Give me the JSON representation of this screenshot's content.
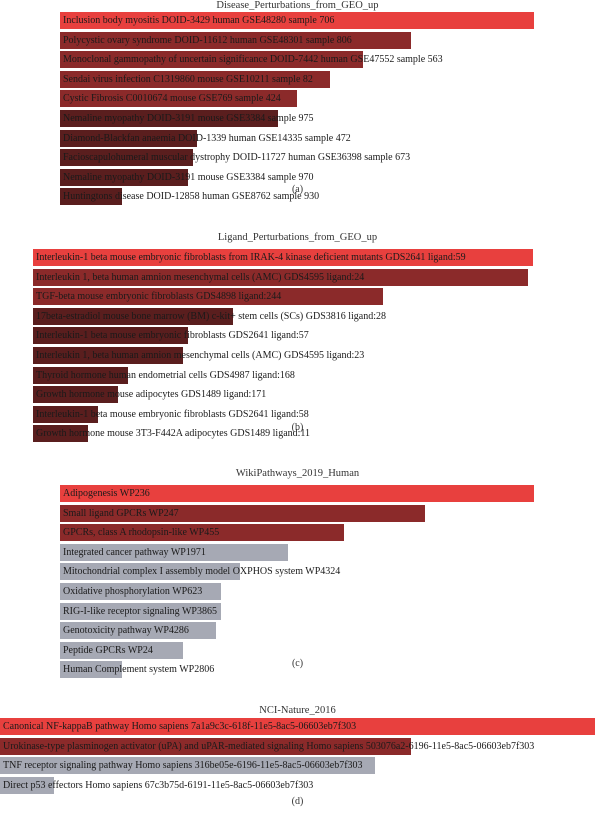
{
  "colors": {
    "red": "#e8403e",
    "darkred": "#8b2a2a",
    "maroon": "#5a1e1e",
    "gray": "#a6a9b4"
  },
  "chart_data": [
    {
      "type": "bar",
      "title": "Disease_Perturbations_from_GEO_up",
      "panel_label": "(a)",
      "bars": [
        {
          "label": "Inclusion body myositis DOID-3429 human GSE48280 sample 706",
          "value": 1.0,
          "color": "red"
        },
        {
          "label": "Polycystic ovary syndrome DOID-11612 human GSE48301 sample 806",
          "value": 0.74,
          "color": "darkred"
        },
        {
          "label": "Monoclonal gammopathy of uncertain significance DOID-7442 human GSE47552 sample 563",
          "value": 0.64,
          "color": "darkred"
        },
        {
          "label": "Sendai virus infection C1319860 mouse GSE10211 sample 82",
          "value": 0.57,
          "color": "darkred"
        },
        {
          "label": "Cystic Fibrosis C0010674 mouse GSE769 sample 424",
          "value": 0.5,
          "color": "darkred"
        },
        {
          "label": "Nemaline myopathy DOID-3191 mouse GSE3384 sample 975",
          "value": 0.46,
          "color": "maroon"
        },
        {
          "label": "Diamond-Blackfan anaemia DOID-1339 human GSE14335 sample 472",
          "value": 0.29,
          "color": "maroon"
        },
        {
          "label": "Facioscapulohumeral muscular dystrophy DOID-11727 human GSE36398 sample 673",
          "value": 0.28,
          "color": "maroon"
        },
        {
          "label": "Nemaline myopathy DOID-3191 mouse GSE3384 sample 970",
          "value": 0.27,
          "color": "maroon"
        },
        {
          "label": "Huntingtons disease DOID-12858 human GSE8762 sample 930",
          "value": 0.13,
          "color": "maroon"
        }
      ]
    },
    {
      "type": "bar",
      "title": "Ligand_Perturbations_from_GEO_up",
      "panel_label": "(b)",
      "bars": [
        {
          "label": "Interleukin-1 beta mouse embryonic fibroblasts from IRAK-4 kinase deficient mutants GDS2641 ligand:59",
          "value": 1.0,
          "color": "red"
        },
        {
          "label": "Interleukin 1, beta human amnion mesenchymal cells (AMC) GDS4595 ligand:24",
          "value": 0.99,
          "color": "darkred"
        },
        {
          "label": "TGF-beta mouse embryonic fibroblasts GDS4898 ligand:244",
          "value": 0.7,
          "color": "darkred"
        },
        {
          "label": "17beta-estradiol mouse bone marrow (BM) c-kit+ stem cells (SCs) GDS3816 ligand:28",
          "value": 0.4,
          "color": "maroon"
        },
        {
          "label": "Interleukin-1 beta mouse embryonic fibroblasts GDS2641 ligand:57",
          "value": 0.31,
          "color": "maroon"
        },
        {
          "label": "Interleukin 1, beta human amnion mesenchymal cells (AMC) GDS4595 ligand:23",
          "value": 0.3,
          "color": "maroon"
        },
        {
          "label": "Thyroid hormone human endometrial cells GDS4987 ligand:168",
          "value": 0.19,
          "color": "maroon"
        },
        {
          "label": "Growth hormone mouse adipocytes GDS1489 ligand:171",
          "value": 0.17,
          "color": "maroon"
        },
        {
          "label": "Interleukin-1 beta mouse embryonic fibroblasts GDS2641 ligand:58",
          "value": 0.13,
          "color": "maroon"
        },
        {
          "label": "Growth hormone mouse 3T3-F442A adipocytes GDS1489 ligand:11",
          "value": 0.11,
          "color": "maroon"
        }
      ]
    },
    {
      "type": "bar",
      "title": "WikiPathways_2019_Human",
      "panel_label": "(c)",
      "bars": [
        {
          "label": "Adipogenesis WP236",
          "value": 1.0,
          "color": "red"
        },
        {
          "label": "Small ligand GPCRs WP247",
          "value": 0.77,
          "color": "darkred"
        },
        {
          "label": "GPCRs, class A rhodopsin-like WP455",
          "value": 0.6,
          "color": "darkred"
        },
        {
          "label": "Integrated cancer pathway WP1971",
          "value": 0.48,
          "color": "gray"
        },
        {
          "label": "Mitochondrial complex I assembly model OXPHOS system WP4324",
          "value": 0.38,
          "color": "gray"
        },
        {
          "label": "Oxidative phosphorylation WP623",
          "value": 0.34,
          "color": "gray"
        },
        {
          "label": "RIG-I-like receptor signaling WP3865",
          "value": 0.34,
          "color": "gray"
        },
        {
          "label": "Genotoxicity pathway WP4286",
          "value": 0.33,
          "color": "gray"
        },
        {
          "label": "Peptide GPCRs WP24",
          "value": 0.26,
          "color": "gray"
        },
        {
          "label": "Human Complement system WP2806",
          "value": 0.13,
          "color": "gray"
        }
      ]
    },
    {
      "type": "bar",
      "title": "NCI-Nature_2016",
      "panel_label": "(d)",
      "bars": [
        {
          "label": "Canonical NF-kappaB pathway Homo sapiens 7a1a9c3c-618f-11e5-8ac5-06603eb7f303",
          "value": 1.0,
          "color": "red"
        },
        {
          "label": "Urokinase-type plasminogen activator (uPA) and uPAR-mediated signaling Homo sapiens 503076a2-6196-11e5-8ac5-06603eb7f303",
          "value": 0.69,
          "color": "darkred"
        },
        {
          "label": "TNF receptor signaling pathway Homo sapiens 316be05e-6196-11e5-8ac5-06603eb7f303",
          "value": 0.63,
          "color": "gray"
        },
        {
          "label": "Direct p53 effectors Homo sapiens 67c3b75d-6191-11e5-8ac5-06603eb7f303",
          "value": 0.09,
          "color": "gray"
        }
      ]
    }
  ]
}
